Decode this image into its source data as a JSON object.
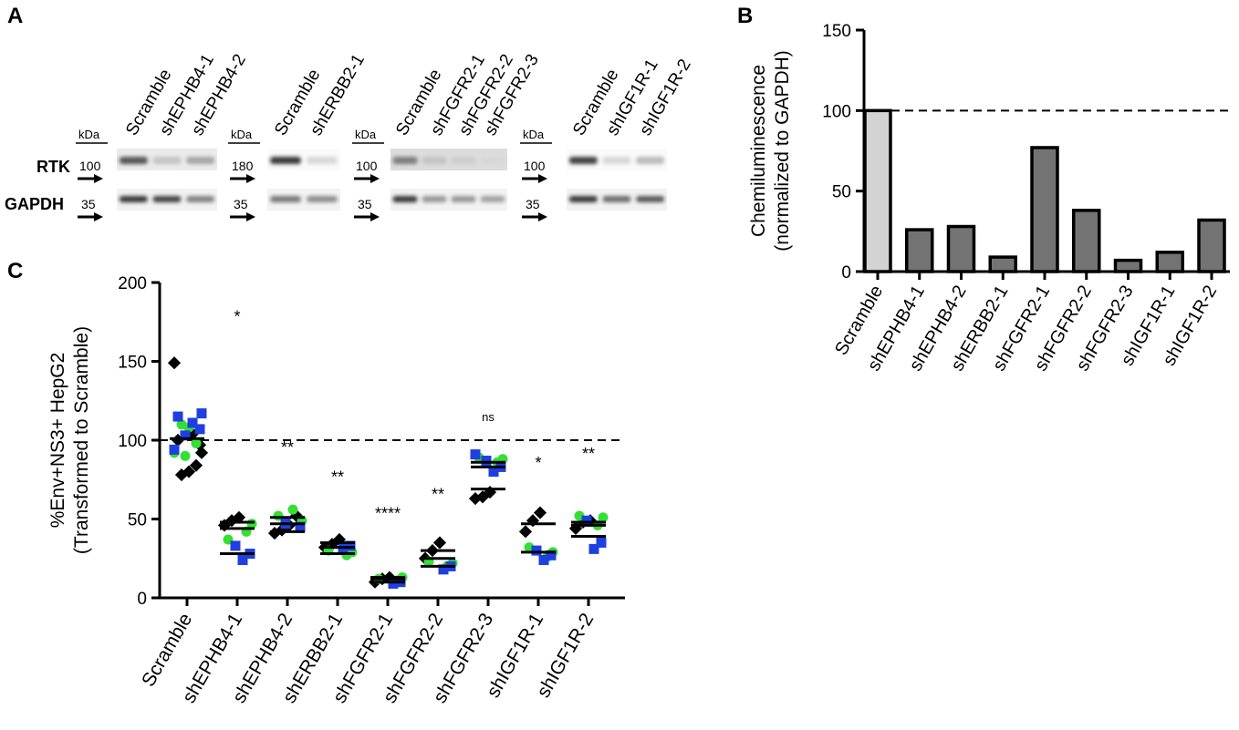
{
  "panels": {
    "a": {
      "letter": "A",
      "blots": [
        {
          "kda_label": "kDa",
          "rtk_kda": "100",
          "gapdh_kda": "35",
          "lanes": [
            "Scramble",
            "shEPHB4-1",
            "shEPHB4-2"
          ],
          "rtk_band": [
            0.75,
            0.2,
            0.35
          ],
          "gapdh_band": [
            0.85,
            0.8,
            0.5
          ],
          "rtk_background": "light"
        },
        {
          "kda_label": "kDa",
          "rtk_kda": "180",
          "gapdh_kda": "35",
          "lanes": [
            "Scramble",
            "shERBB2-1"
          ],
          "rtk_band": [
            0.9,
            0.1
          ],
          "gapdh_band": [
            0.55,
            0.45
          ],
          "rtk_background": "white"
        },
        {
          "kda_label": "kDa",
          "rtk_kda": "100",
          "gapdh_kda": "35",
          "lanes": [
            "Scramble",
            "shFGFR2-1",
            "shFGFR2-2",
            "shFGFR2-3"
          ],
          "rtk_band": [
            0.55,
            0.2,
            0.15,
            0.1
          ],
          "gapdh_band": [
            0.85,
            0.4,
            0.4,
            0.35
          ],
          "rtk_background": "gray"
        },
        {
          "kda_label": "kDa",
          "rtk_kda": "100",
          "gapdh_kda": "35",
          "lanes": [
            "Scramble",
            "shIGF1R-1",
            "shIGF1R-2"
          ],
          "rtk_band": [
            0.85,
            0.1,
            0.25
          ],
          "gapdh_band": [
            0.85,
            0.6,
            0.7
          ],
          "rtk_background": "white"
        }
      ],
      "row_labels": {
        "rtk": "RTK",
        "gapdh": "GAPDH"
      }
    },
    "b": {
      "letter": "B"
    },
    "c": {
      "letter": "C"
    }
  },
  "chart_data": [
    {
      "panel": "B",
      "type": "bar",
      "categories": [
        "Scramble",
        "shEPHB4-1",
        "shEPHB4-2",
        "shERBB2-1",
        "shFGFR2-1",
        "shFGFR2-2",
        "shFGFR2-3",
        "shIGF1R-1",
        "shIGF1R-2"
      ],
      "values": [
        100,
        26,
        28,
        9,
        77,
        38,
        7,
        12,
        32
      ],
      "bar_colors": [
        "#d3d3d3",
        "#737373",
        "#737373",
        "#737373",
        "#737373",
        "#737373",
        "#737373",
        "#737373",
        "#737373"
      ],
      "ylabel_line1": "Chemiluminescence",
      "ylabel_line2": "(normalized to GAPDH)",
      "ylim": [
        0,
        150
      ],
      "yticks": [
        0,
        50,
        100,
        150
      ],
      "reference_line": 100
    },
    {
      "panel": "C",
      "type": "scatter",
      "categories": [
        "Scramble",
        "shEPHB4-1",
        "shEPHB4-2",
        "shERBB2-1",
        "shFGFR2-1",
        "shFGFR2-2",
        "shFGFR2-3",
        "shIGF1R-1",
        "shIGF1R-2"
      ],
      "ylabel_line1": "%Env+NS3+ HepG2",
      "ylabel_line2": "(Transformed to Scramble)",
      "ylim": [
        0,
        200
      ],
      "yticks": [
        0,
        50,
        100,
        150,
        200
      ],
      "reference_line": 100,
      "series_colors": {
        "black": "#000000",
        "green": "#33e033",
        "blue": "#1f3fe0"
      },
      "significance": [
        "",
        "*",
        "**",
        "**",
        "****",
        "**",
        "ns",
        "*",
        "**"
      ],
      "significance_y": [
        0,
        175,
        92,
        73,
        50,
        62,
        112,
        82,
        88
      ],
      "mean_lines": [
        [
          101
        ],
        [
          28,
          44,
          48
        ],
        [
          42,
          47,
          51
        ],
        [
          28,
          32,
          35
        ],
        [
          10,
          12,
          13
        ],
        [
          20,
          25,
          30
        ],
        [
          69,
          83,
          86
        ],
        [
          29,
          47
        ],
        [
          39,
          46,
          48
        ]
      ],
      "groups": [
        {
          "black": [
            149,
            78,
            80,
            84,
            92,
            100,
            104,
            97
          ],
          "green": [
            90,
            92,
            110,
            108,
            98
          ],
          "blue": [
            117,
            115,
            111,
            107,
            103,
            94
          ]
        },
        {
          "black": [
            46,
            49,
            51
          ],
          "green": [
            42,
            47,
            37
          ],
          "blue": [
            24,
            28,
            33
          ]
        },
        {
          "black": [
            41,
            43,
            46,
            52
          ],
          "green": [
            49,
            52,
            56
          ],
          "blue": [
            45,
            47
          ]
        },
        {
          "black": [
            32,
            34,
            37
          ],
          "green": [
            27,
            29,
            30
          ],
          "blue": [
            31,
            33
          ]
        },
        {
          "black": [
            10,
            12,
            13
          ],
          "green": [
            11,
            13,
            12
          ],
          "blue": [
            9,
            10
          ]
        },
        {
          "black": [
            25,
            30,
            35
          ],
          "green": [
            20,
            22,
            23
          ],
          "blue": [
            18,
            20
          ]
        },
        {
          "black": [
            63,
            64,
            67
          ],
          "green": [
            86,
            88,
            89
          ],
          "blue": [
            80,
            83,
            87,
            91
          ]
        },
        {
          "black": [
            42,
            49,
            54
          ],
          "green": [
            26,
            29,
            32
          ],
          "blue": [
            24,
            27,
            30
          ]
        },
        {
          "black": [
            44,
            48,
            49
          ],
          "green": [
            46,
            51,
            52
          ],
          "blue": [
            31,
            35,
            49
          ]
        }
      ]
    }
  ]
}
